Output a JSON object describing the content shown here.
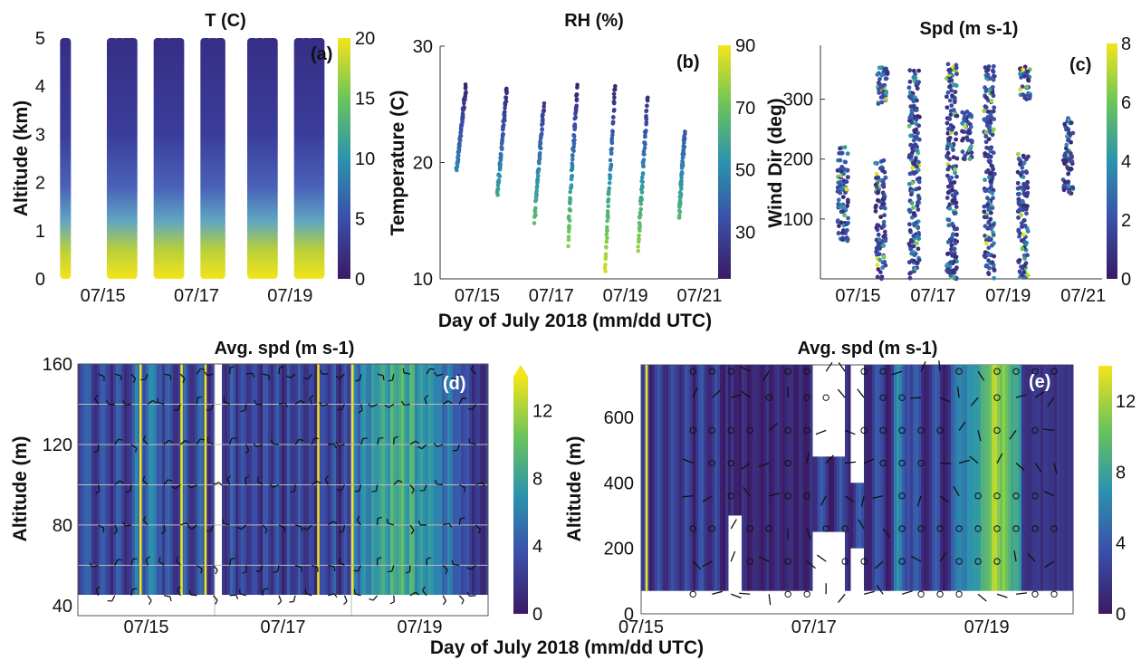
{
  "figure": {
    "shared_xlabel_top": "Day of July 2018 (mm/dd UTC)",
    "shared_xlabel_bottom": "Day of July 2018 (mm/dd UTC)"
  },
  "colors": {
    "low": "#3b1a63",
    "mid_blue": "#3a5fb0",
    "teal": "#2aa3a0",
    "green": "#7ac74f",
    "high": "#f3e51a"
  },
  "chart_data": [
    {
      "panel": "a",
      "type": "heatmap",
      "title": "T (C)",
      "ylabel": "Altitude (km)",
      "xlabel": "",
      "ylim": [
        0,
        5
      ],
      "yticks": [
        "0",
        "1",
        "2",
        "3",
        "4",
        "5"
      ],
      "xticks": [
        "07/15",
        "07/17",
        "07/19"
      ],
      "colorbar": {
        "min": 0,
        "max": 20,
        "ticks": [
          "0",
          "5",
          "10",
          "15",
          "20"
        ]
      },
      "panel_label": "(a)",
      "profile_days": [
        14.2,
        15.2,
        15.35,
        15.5,
        15.62,
        16.2,
        16.35,
        16.5,
        16.62,
        17.2,
        17.35,
        17.5,
        18.2,
        18.35,
        18.5,
        18.62,
        19.2,
        19.35,
        19.5,
        19.62
      ]
    },
    {
      "panel": "b",
      "type": "scatter",
      "title": "RH (%)",
      "ylabel": "Temperature (C)",
      "xlabel": "",
      "ylim": [
        10,
        30
      ],
      "yticks": [
        "10",
        "20",
        "30"
      ],
      "xticks": [
        "07/15",
        "07/17",
        "07/19",
        "07/21"
      ],
      "colorbar": {
        "min": 15,
        "max": 90,
        "ticks": [
          "30",
          "50",
          "70",
          "90"
        ]
      },
      "panel_label": "(b)",
      "segments": [
        {
          "x0": 14.45,
          "t0": 19.3,
          "x1": 14.7,
          "t1": 26.5
        },
        {
          "x0": 15.55,
          "t0": 17.0,
          "x1": 15.8,
          "t1": 26.3
        },
        {
          "x0": 16.55,
          "t0": 15.0,
          "x1": 16.8,
          "t1": 25.0
        },
        {
          "x0": 17.45,
          "t0": 13.0,
          "x1": 17.7,
          "t1": 26.5
        },
        {
          "x0": 18.45,
          "t0": 10.5,
          "x1": 18.72,
          "t1": 26.6
        },
        {
          "x0": 19.35,
          "t0": 12.5,
          "x1": 19.6,
          "t1": 25.6
        },
        {
          "x0": 20.45,
          "t0": 15.3,
          "x1": 20.6,
          "t1": 22.5
        }
      ]
    },
    {
      "panel": "c",
      "type": "scatter",
      "title": "Spd (m s-1)",
      "ylabel": "Wind Dir (deg)",
      "xlabel": "",
      "ylim": [
        0,
        390
      ],
      "yticks": [
        "100",
        "200",
        "300"
      ],
      "xticks": [
        "07/15",
        "07/17",
        "07/19",
        "07/21"
      ],
      "colorbar": {
        "min": 0,
        "max": 8,
        "ticks": [
          "0",
          "2",
          "4",
          "6",
          "8"
        ]
      },
      "panel_label": "(c)",
      "columns": [
        {
          "x": 14.6,
          "lo": 60,
          "hi": 225
        },
        {
          "x": 15.6,
          "lo": 0,
          "hi": 200
        },
        {
          "x": 15.65,
          "lo": 290,
          "hi": 355
        },
        {
          "x": 16.5,
          "lo": 0,
          "hi": 350
        },
        {
          "x": 17.5,
          "lo": 0,
          "hi": 360
        },
        {
          "x": 17.9,
          "lo": 200,
          "hi": 280
        },
        {
          "x": 18.5,
          "lo": 0,
          "hi": 360
        },
        {
          "x": 19.4,
          "lo": 0,
          "hi": 210
        },
        {
          "x": 19.45,
          "lo": 300,
          "hi": 355
        },
        {
          "x": 20.6,
          "lo": 140,
          "hi": 270
        }
      ]
    },
    {
      "panel": "d",
      "type": "heatmap",
      "title": "Avg. spd (m s-1)",
      "ylabel": "Altitude (m)",
      "xlabel": "",
      "ylim": [
        35,
        160
      ],
      "yticks": [
        "40",
        "80",
        "120",
        "160"
      ],
      "xticks": [
        "07/15",
        "07/17",
        "07/19"
      ],
      "colorbar": {
        "min": 0,
        "max": 14,
        "ticks": [
          "0",
          "4",
          "8",
          "12"
        ]
      },
      "panel_label": "(d)"
    },
    {
      "panel": "e",
      "type": "heatmap",
      "title": "Avg. spd (m s-1)",
      "ylabel": "Altitude (m)",
      "xlabel": "",
      "ylim": [
        0,
        760
      ],
      "yticks": [
        "0",
        "200",
        "400",
        "600"
      ],
      "xticks": [
        "07/15",
        "07/17",
        "07/19"
      ],
      "colorbar": {
        "min": 0,
        "max": 14,
        "ticks": [
          "0",
          "4",
          "8",
          "12"
        ]
      },
      "panel_label": "(e)"
    }
  ]
}
